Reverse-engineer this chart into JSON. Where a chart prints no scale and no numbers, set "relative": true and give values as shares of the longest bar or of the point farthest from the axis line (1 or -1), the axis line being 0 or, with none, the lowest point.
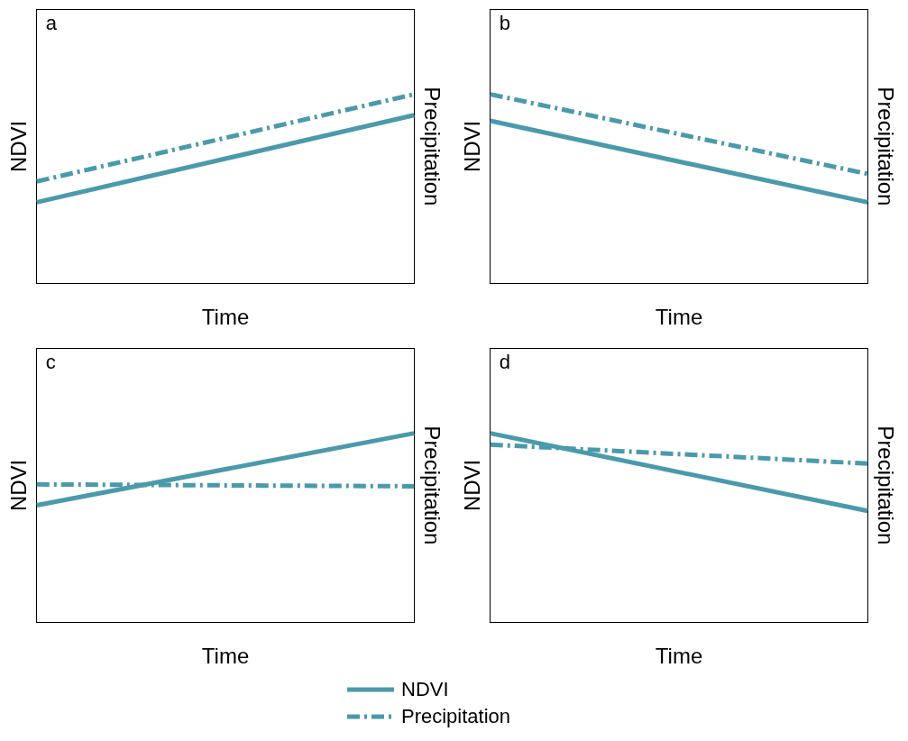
{
  "chart_data": [
    {
      "type": "line",
      "title": "a",
      "xlabel": "Time",
      "ylabel": "NDVI",
      "y2label": "Precipitation",
      "relative": true,
      "categories": [
        null,
        null
      ],
      "marker": "none",
      "series": [
        {
          "color": "#4a9aab",
          "line_style": "solid",
          "values": [
            0.43,
            0.89
          ]
        },
        {
          "color": "#4a9aab",
          "line_style": "dashed",
          "values": [
            0.54,
            1
          ]
        }
      ]
    },
    {
      "type": "line",
      "title": "b",
      "xlabel": "Time",
      "ylabel": "NDVI",
      "y2label": "Precipitation",
      "relative": true,
      "categories": [
        null,
        null
      ],
      "marker": "none",
      "series": [
        {
          "color": "#4a9aab",
          "line_style": "solid",
          "values": [
            0.86,
            0.43
          ]
        },
        {
          "color": "#4a9aab",
          "line_style": "dashed",
          "values": [
            1,
            0.58
          ]
        }
      ]
    },
    {
      "type": "line",
      "title": "c",
      "xlabel": "Time",
      "ylabel": "NDVI",
      "y2label": "Precipitation",
      "relative": true,
      "categories": [
        null,
        null
      ],
      "marker": "none",
      "legend": "bottom right",
      "series": [
        {
          "name": "NDVI",
          "color": "#4a9aab",
          "line_style": "solid",
          "values": [
            0.62,
            1
          ]
        },
        {
          "name": "Precipitation",
          "color": "#4a9aab",
          "line_style": "dashed",
          "values": [
            0.73,
            0.72
          ]
        }
      ]
    },
    {
      "type": "line",
      "title": "d",
      "xlabel": "Time",
      "ylabel": "NDVI",
      "y2label": "Precipitation",
      "relative": true,
      "categories": [
        null,
        null
      ],
      "marker": "none",
      "series": [
        {
          "color": "#4a9aab",
          "line_style": "solid",
          "values": [
            1,
            0.59
          ]
        },
        {
          "color": "#4a9aab",
          "line_style": "dashed",
          "values": [
            0.94,
            0.84
          ]
        }
      ]
    }
  ]
}
